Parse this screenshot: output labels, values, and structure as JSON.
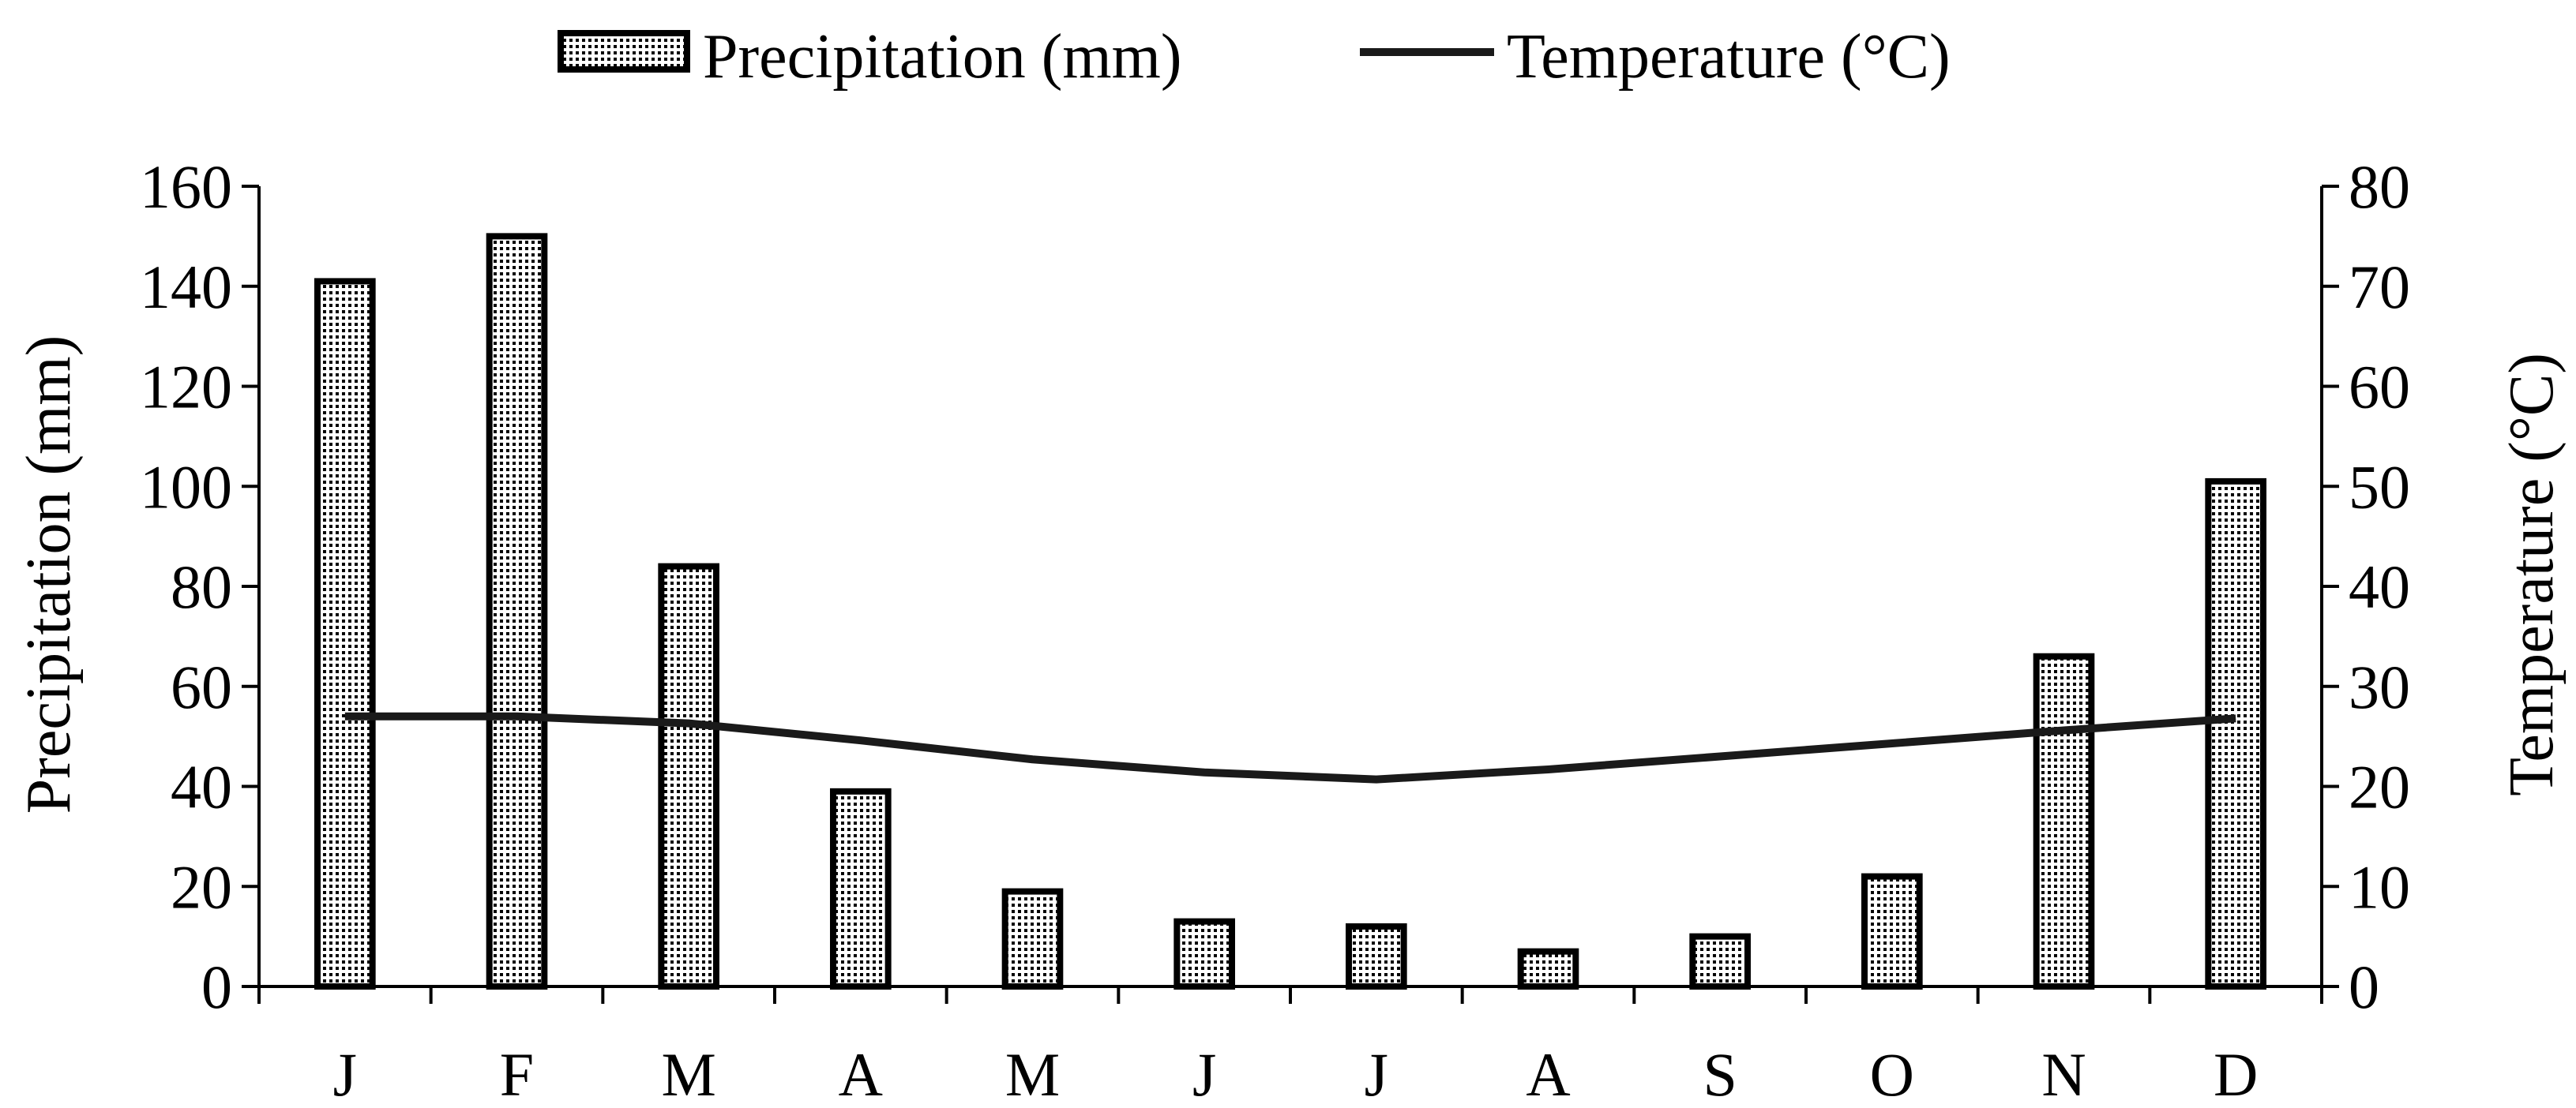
{
  "chart_data": {
    "type": "bar+line",
    "categories": [
      "J",
      "F",
      "M",
      "A",
      "M",
      "J",
      "J",
      "A",
      "S",
      "O",
      "N",
      "D"
    ],
    "series": [
      {
        "name": "Precipitation (mm)",
        "type": "bar",
        "axis": "left",
        "values": [
          141,
          150,
          84,
          39,
          19,
          13,
          12,
          7,
          10,
          22,
          66,
          101
        ]
      },
      {
        "name": "Temperature (°C)",
        "type": "line",
        "axis": "right",
        "values": [
          27,
          27,
          26.3,
          24.6,
          22.7,
          21.4,
          20.7,
          21.7,
          23.0,
          24.3,
          25.6,
          26.8
        ]
      }
    ],
    "ylabel": "Precipitation (mm)",
    "y2label": "Temperature (°C)",
    "xlabel": "",
    "ylim": [
      0,
      160
    ],
    "y2lim": [
      0,
      80
    ],
    "yticks": [
      "0",
      "20",
      "40",
      "60",
      "80",
      "100",
      "120",
      "140",
      "160"
    ],
    "y2ticks": [
      "0",
      "10",
      "20",
      "30",
      "40",
      "50",
      "60",
      "70",
      "80"
    ],
    "legend": {
      "position": "top-center",
      "entries": [
        "Precipitation (mm)",
        "Temperature (°C)"
      ]
    },
    "grid": false,
    "colors": {
      "bar_fill": "#ffffff",
      "bar_dots": "#000000",
      "line": "#1a1a1a",
      "axis": "#000000"
    }
  }
}
